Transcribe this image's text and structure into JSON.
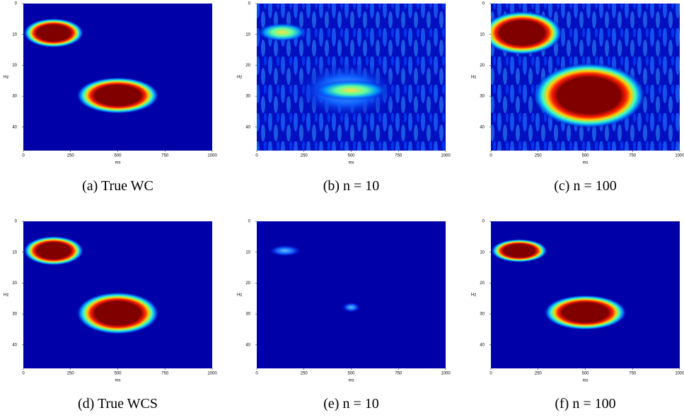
{
  "chart_data": [
    {
      "type": "heatmap",
      "caption": "(a) True WC",
      "xlabel": "ms",
      "ylabel": "Hz",
      "xlim": [
        0,
        1000
      ],
      "ylim": [
        0,
        47.6
      ],
      "xticks": [
        0,
        250,
        500,
        750,
        1000
      ],
      "yticks": [
        0,
        10,
        20,
        30,
        40
      ],
      "y_inverted": true
    },
    {
      "type": "heatmap",
      "caption": "(b) n = 10",
      "xlabel": "ms",
      "ylabel": "Hz",
      "xlim": [
        0,
        1000
      ],
      "ylim": [
        0,
        47.6
      ],
      "xticks": [
        0,
        250,
        500,
        750,
        1000
      ],
      "yticks": [
        0,
        10,
        20,
        30,
        40
      ],
      "y_inverted": true
    },
    {
      "type": "heatmap",
      "caption": "(c) n = 100",
      "xlabel": "ms",
      "ylabel": "Hz",
      "xlim": [
        0,
        1000
      ],
      "ylim": [
        0,
        47.6
      ],
      "xticks": [
        0,
        250,
        500,
        750,
        1000
      ],
      "yticks": [
        0,
        10,
        20,
        30,
        40
      ],
      "y_inverted": true
    },
    {
      "type": "heatmap",
      "caption": "(d) True WCS",
      "xlabel": "ms",
      "ylabel": "Hz",
      "xlim": [
        0,
        1000
      ],
      "ylim": [
        0,
        47.6
      ],
      "xticks": [
        0,
        250,
        500,
        750,
        1000
      ],
      "yticks": [
        0,
        10,
        20,
        30,
        40
      ],
      "y_inverted": true
    },
    {
      "type": "heatmap",
      "caption": "(e) n = 10",
      "xlabel": "ms",
      "ylabel": "Hz",
      "xlim": [
        0,
        1000
      ],
      "ylim": [
        0,
        47.6
      ],
      "xticks": [
        0,
        250,
        500,
        750,
        1000
      ],
      "yticks": [
        0,
        10,
        20,
        30,
        40
      ],
      "y_inverted": true
    },
    {
      "type": "heatmap",
      "caption": "(f) n = 100",
      "xlabel": "ms",
      "ylabel": "Hz",
      "xlim": [
        0,
        1000
      ],
      "ylim": [
        0,
        47.6
      ],
      "xticks": [
        0,
        250,
        500,
        750,
        1000
      ],
      "yticks": [
        0,
        10,
        20,
        30,
        40
      ],
      "y_inverted": true
    }
  ]
}
